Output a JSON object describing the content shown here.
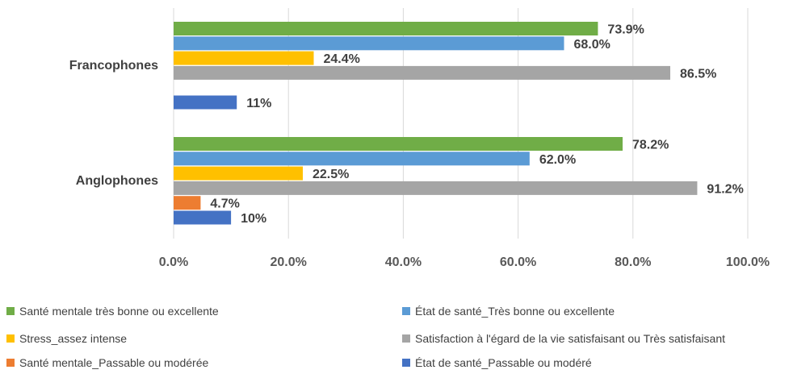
{
  "chart_data": {
    "type": "bar",
    "orientation": "horizontal",
    "categories": [
      "Francophones",
      "Anglophones"
    ],
    "xlim": [
      0,
      100
    ],
    "x_ticks": [
      "0.0%",
      "20.0%",
      "40.0%",
      "60.0%",
      "80.0%",
      "100.0%"
    ],
    "grid": "vertical",
    "legend_position": "bottom",
    "series": [
      {
        "name": "Santé mentale très bonne ou excellente",
        "color": "#70AD47",
        "values": [
          73.9,
          78.2
        ],
        "labels": [
          "73.9%",
          "78.2%"
        ]
      },
      {
        "name": "État de santé_Très bonne ou excellente",
        "color": "#5B9BD5",
        "values": [
          68.0,
          62.0
        ],
        "labels": [
          "68.0%",
          "62.0%"
        ]
      },
      {
        "name": "Stress_assez intense",
        "color": "#FFC000",
        "values": [
          24.4,
          22.5
        ],
        "labels": [
          "24.4%",
          "22.5%"
        ]
      },
      {
        "name": "Satisfaction à l'égard de la vie satisfaisant ou Très satisfaisant",
        "color": "#A5A5A5",
        "values": [
          86.5,
          91.2
        ],
        "labels": [
          "86.5%",
          "91.2%"
        ]
      },
      {
        "name": "Santé mentale_Passable ou modérée",
        "color": "#ED7D31",
        "values": [
          null,
          4.7
        ],
        "labels": [
          "",
          "4.7%"
        ]
      },
      {
        "name": "État de santé_Passable ou modéré",
        "color": "#4472C4",
        "values": [
          11,
          10
        ],
        "labels": [
          "11%",
          "10%"
        ]
      }
    ]
  }
}
